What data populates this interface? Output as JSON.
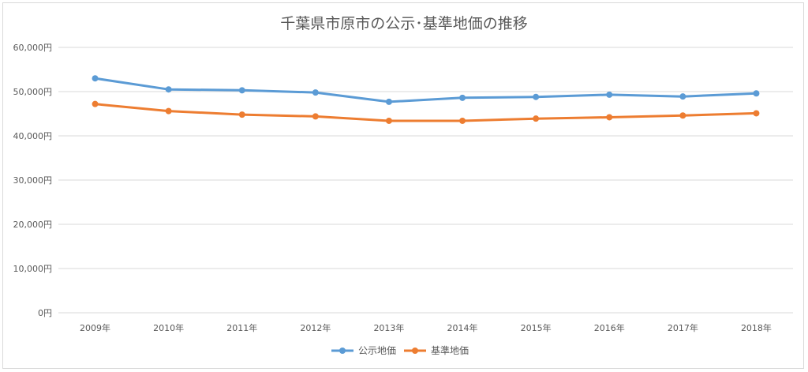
{
  "chart_data": {
    "type": "line",
    "title": "千葉県市原市の公示･基準地価の推移",
    "categories": [
      "2009年",
      "2010年",
      "2011年",
      "2012年",
      "2013年",
      "2014年",
      "2015年",
      "2016年",
      "2017年",
      "2018年"
    ],
    "y_ticks": [
      "0円",
      "10,000円",
      "20,000円",
      "30,000円",
      "40,000円",
      "50,000円",
      "60,000円"
    ],
    "ylim": [
      0,
      60000
    ],
    "grid": true,
    "legend_position": "bottom",
    "series": [
      {
        "name": "公示地価",
        "color": "#5b9bd5",
        "values": [
          53000,
          50500,
          50300,
          49800,
          47700,
          48600,
          48800,
          49300,
          48900,
          49600
        ]
      },
      {
        "name": "基準地価",
        "color": "#ed7d31",
        "values": [
          47200,
          45600,
          44800,
          44400,
          43400,
          43400,
          43900,
          44200,
          44600,
          45100
        ]
      }
    ]
  }
}
